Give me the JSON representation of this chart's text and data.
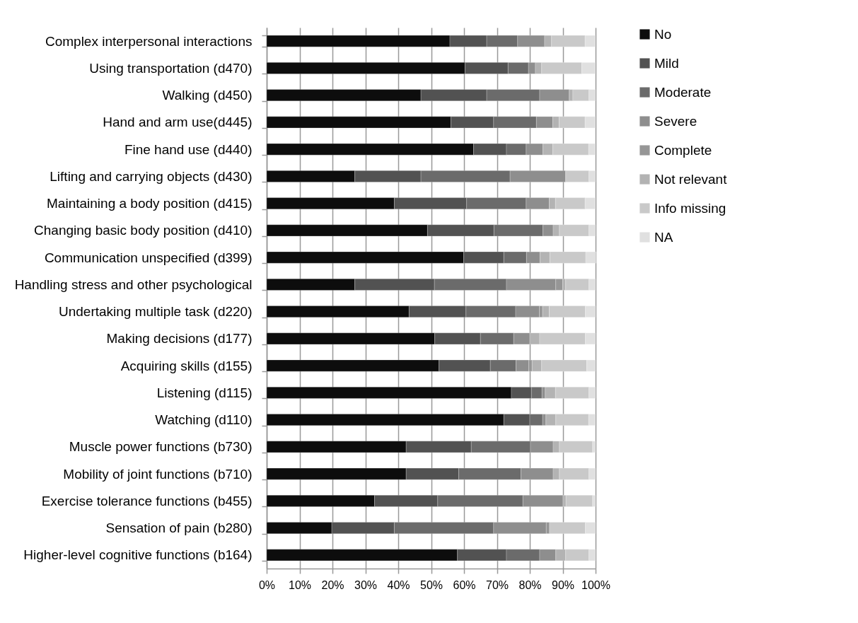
{
  "chart_data": {
    "type": "bar",
    "orientation": "horizontal",
    "stacked": true,
    "categories": [
      "Complex interpersonal interactions",
      "Using transportation (d470)",
      "Walking (d450)",
      "Hand and arm use(d445)",
      "Fine hand use (d440)",
      "Lifting and carrying objects (d430)",
      "Maintaining a body position (d415)",
      "Changing basic body position (d410)",
      "Communication unspecified (d399)",
      "Handling stress and other psychological",
      "Undertaking multiple task (d220)",
      "Making decisions (d177)",
      "Acquiring skills (d155)",
      "Listening (d115)",
      "Watching (d110)",
      "Muscle power functions (b730)",
      "Mobility of joint functions (b710)",
      "Exercise tolerance functions (b455)",
      "Sensation of pain (b280)",
      "Higher-level cognitive functions (b164)"
    ],
    "series": [
      {
        "name": "No",
        "color": "#0d0d0d",
        "values": [
          55.7,
          60.3,
          46.9,
          56.0,
          62.9,
          26.8,
          38.8,
          48.9,
          59.9,
          26.8,
          43.3,
          51.1,
          52.4,
          74.4,
          72.1,
          42.4,
          42.4,
          32.8,
          19.8,
          58.0
        ]
      },
      {
        "name": "Mild",
        "color": "#525252",
        "values": [
          11.2,
          13.1,
          20.0,
          13.0,
          10.0,
          20.1,
          22.0,
          20.2,
          12.2,
          24.2,
          17.3,
          13.9,
          15.6,
          6.1,
          7.9,
          19.8,
          16.0,
          19.2,
          19.0,
          14.9
        ]
      },
      {
        "name": "Moderate",
        "color": "#6b6b6b",
        "values": [
          9.4,
          6.2,
          16.1,
          13.0,
          6.0,
          27.1,
          18.1,
          14.9,
          6.9,
          21.9,
          15.1,
          10.1,
          7.8,
          3.2,
          3.9,
          18.0,
          18.9,
          25.9,
          30.2,
          10.1
        ]
      },
      {
        "name": "Severe",
        "color": "#8e8e8e",
        "values": [
          8.2,
          2.1,
          9.0,
          5.0,
          5.1,
          16.9,
          7.0,
          3.1,
          4.1,
          15.0,
          7.2,
          4.9,
          3.9,
          1.0,
          1.0,
          6.9,
          9.8,
          12.2,
          16.0,
          4.9
        ]
      },
      {
        "name": "Complete",
        "color": "#969696",
        "values": [
          null,
          null,
          null,
          null,
          null,
          null,
          null,
          null,
          null,
          2.1,
          1.0,
          null,
          1.0,
          null,
          null,
          null,
          null,
          null,
          1.0,
          null
        ]
      },
      {
        "name": "Not relevant",
        "color": "#b3b3b3",
        "values": [
          2.1,
          1.9,
          1.1,
          1.9,
          3.0,
          null,
          1.9,
          1.9,
          3.0,
          0.9,
          2.0,
          3.0,
          2.9,
          3.1,
          3.0,
          1.9,
          1.9,
          0.9,
          null,
          3.0
        ]
      },
      {
        "name": "Info missing",
        "color": "#c9c9c9",
        "values": [
          10.2,
          12.2,
          4.9,
          7.9,
          10.9,
          7.1,
          9.0,
          9.0,
          10.9,
          7.1,
          11.0,
          13.9,
          13.7,
          10.2,
          10.0,
          10.1,
          9.0,
          8.1,
          10.9,
          7.1
        ]
      },
      {
        "name": "NA",
        "color": "#e0e0e0",
        "values": [
          3.1,
          4.1,
          2.0,
          3.1,
          2.0,
          2.0,
          3.1,
          2.0,
          3.1,
          2.0,
          3.1,
          3.1,
          2.7,
          2.0,
          2.0,
          0.9,
          2.0,
          0.9,
          3.1,
          2.0
        ]
      }
    ],
    "xlim": [
      0,
      100
    ],
    "xticks": [
      {
        "value": 0,
        "label": "0%"
      },
      {
        "value": 10,
        "label": "10%"
      },
      {
        "value": 20,
        "label": "20%"
      },
      {
        "value": 30,
        "label": "30%"
      },
      {
        "value": 40,
        "label": "40%"
      },
      {
        "value": 50,
        "label": "50%"
      },
      {
        "value": 60,
        "label": "60%"
      },
      {
        "value": 70,
        "label": "70%"
      },
      {
        "value": 80,
        "label": "80%"
      },
      {
        "value": 90,
        "label": "90%"
      },
      {
        "value": 100,
        "label": "100%"
      }
    ],
    "grid": "x",
    "legend": "right"
  }
}
